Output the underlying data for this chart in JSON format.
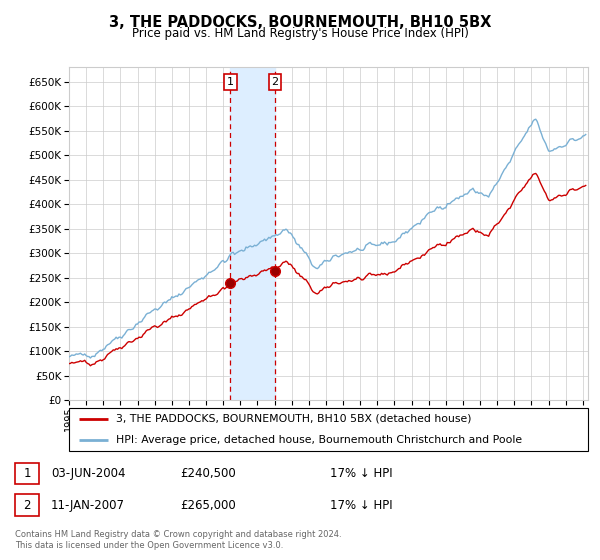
{
  "title": "3, THE PADDOCKS, BOURNEMOUTH, BH10 5BX",
  "subtitle": "Price paid vs. HM Land Registry's House Price Index (HPI)",
  "legend_label_red": "3, THE PADDOCKS, BOURNEMOUTH, BH10 5BX (detached house)",
  "legend_label_blue": "HPI: Average price, detached house, Bournemouth Christchurch and Poole",
  "transaction1_date": "03-JUN-2004",
  "transaction1_price": 240500,
  "transaction1_note": "17% ↓ HPI",
  "transaction2_date": "11-JAN-2007",
  "transaction2_price": 265000,
  "transaction2_note": "17% ↓ HPI",
  "footer": "Contains HM Land Registry data © Crown copyright and database right 2024.\nThis data is licensed under the Open Government Licence v3.0.",
  "ylim": [
    0,
    680000
  ],
  "ytick_step": 50000,
  "red_color": "#cc0000",
  "blue_color": "#7ab0d4",
  "background_color": "#ffffff",
  "grid_color": "#cccccc",
  "shade_color": "#ddeeff",
  "transaction1_year": 2004.42,
  "transaction2_year": 2007.03
}
